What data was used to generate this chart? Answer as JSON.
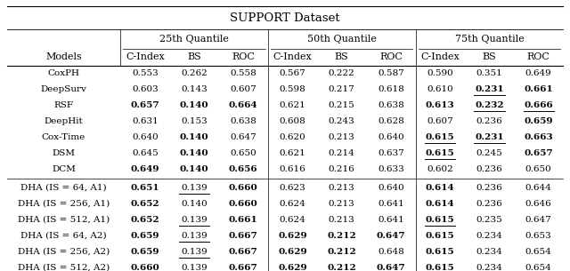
{
  "title": "SUPPORT Dataset",
  "col_groups": [
    "25th Quantile",
    "50th Quantile",
    "75th Quantile"
  ],
  "sub_cols": [
    "C-Index",
    "BS",
    "ROC"
  ],
  "models": [
    "CoxPH",
    "DeepSurv",
    "RSF",
    "DeepHit",
    "Cox-Time",
    "DSM",
    "DCM",
    "DHA (IS = 64, A1)",
    "DHA (IS = 256, A1)",
    "DHA (IS = 512, A1)",
    "DHA (IS = 64, A2)",
    "DHA (IS = 256, A2)",
    "DHA (IS = 512, A2)"
  ],
  "data": [
    [
      0.553,
      0.262,
      0.558,
      0.567,
      0.222,
      0.587,
      0.59,
      0.351,
      0.649
    ],
    [
      0.603,
      0.143,
      0.607,
      0.598,
      0.217,
      0.618,
      0.61,
      0.231,
      0.661
    ],
    [
      0.657,
      0.14,
      0.664,
      0.621,
      0.215,
      0.638,
      0.613,
      0.232,
      0.666
    ],
    [
      0.631,
      0.153,
      0.638,
      0.608,
      0.243,
      0.628,
      0.607,
      0.236,
      0.659
    ],
    [
      0.64,
      0.14,
      0.647,
      0.62,
      0.213,
      0.64,
      0.615,
      0.231,
      0.663
    ],
    [
      0.645,
      0.14,
      0.65,
      0.621,
      0.214,
      0.637,
      0.615,
      0.245,
      0.657
    ],
    [
      0.649,
      0.14,
      0.656,
      0.616,
      0.216,
      0.633,
      0.602,
      0.236,
      0.65
    ],
    [
      0.651,
      0.139,
      0.66,
      0.623,
      0.213,
      0.64,
      0.614,
      0.236,
      0.644
    ],
    [
      0.652,
      0.14,
      0.66,
      0.624,
      0.213,
      0.641,
      0.614,
      0.236,
      0.646
    ],
    [
      0.652,
      0.139,
      0.661,
      0.624,
      0.213,
      0.641,
      0.615,
      0.235,
      0.647
    ],
    [
      0.659,
      0.139,
      0.667,
      0.629,
      0.212,
      0.647,
      0.615,
      0.234,
      0.653
    ],
    [
      0.659,
      0.139,
      0.667,
      0.629,
      0.212,
      0.648,
      0.615,
      0.234,
      0.654
    ],
    [
      0.66,
      0.139,
      0.667,
      0.629,
      0.212,
      0.647,
      0.615,
      0.234,
      0.654
    ]
  ],
  "bold": [
    [
      false,
      false,
      false,
      false,
      false,
      false,
      false,
      false,
      false
    ],
    [
      false,
      false,
      false,
      false,
      false,
      false,
      false,
      true,
      true
    ],
    [
      true,
      true,
      true,
      false,
      false,
      false,
      true,
      true,
      true
    ],
    [
      false,
      false,
      false,
      false,
      false,
      false,
      false,
      false,
      true
    ],
    [
      false,
      true,
      false,
      false,
      false,
      false,
      true,
      true,
      true
    ],
    [
      false,
      true,
      false,
      false,
      false,
      false,
      true,
      false,
      true
    ],
    [
      true,
      true,
      true,
      false,
      false,
      false,
      false,
      false,
      false
    ],
    [
      true,
      false,
      true,
      false,
      false,
      false,
      true,
      false,
      false
    ],
    [
      true,
      false,
      true,
      false,
      false,
      false,
      true,
      false,
      false
    ],
    [
      true,
      false,
      true,
      false,
      false,
      false,
      true,
      false,
      false
    ],
    [
      true,
      false,
      true,
      true,
      true,
      true,
      true,
      false,
      false
    ],
    [
      true,
      false,
      true,
      true,
      true,
      false,
      true,
      false,
      false
    ],
    [
      true,
      false,
      true,
      true,
      true,
      true,
      true,
      false,
      false
    ]
  ],
  "underline": [
    [
      false,
      false,
      false,
      false,
      false,
      false,
      false,
      false,
      false
    ],
    [
      false,
      false,
      false,
      false,
      false,
      false,
      false,
      true,
      false
    ],
    [
      false,
      false,
      false,
      false,
      false,
      false,
      false,
      true,
      true
    ],
    [
      false,
      false,
      false,
      false,
      false,
      false,
      false,
      false,
      false
    ],
    [
      false,
      false,
      false,
      false,
      false,
      false,
      true,
      true,
      false
    ],
    [
      false,
      false,
      false,
      false,
      false,
      false,
      true,
      false,
      false
    ],
    [
      false,
      false,
      false,
      false,
      false,
      false,
      false,
      false,
      false
    ],
    [
      false,
      true,
      false,
      false,
      false,
      false,
      false,
      false,
      false
    ],
    [
      false,
      false,
      false,
      false,
      false,
      false,
      false,
      false,
      false
    ],
    [
      false,
      true,
      false,
      false,
      false,
      false,
      true,
      false,
      false
    ],
    [
      false,
      true,
      false,
      false,
      false,
      false,
      false,
      false,
      false
    ],
    [
      false,
      true,
      false,
      false,
      false,
      false,
      false,
      false,
      false
    ],
    [
      false,
      true,
      false,
      false,
      false,
      false,
      false,
      false,
      false
    ]
  ],
  "font_size": 7.5,
  "header_font_size": 8.0,
  "title_font_size": 9.5
}
